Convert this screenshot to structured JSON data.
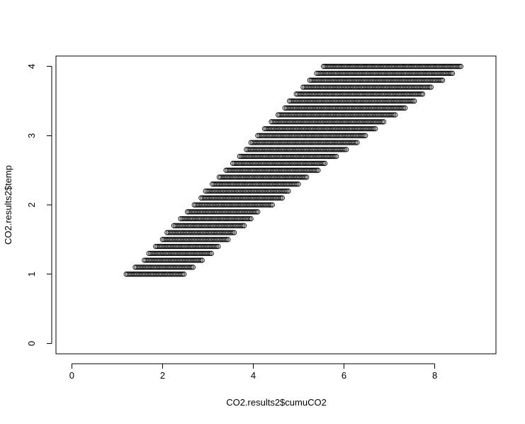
{
  "chart_data": {
    "type": "scatter",
    "title": "",
    "xlabel": "CO2.results2$cumuCO2",
    "ylabel": "CO2.results2$temp",
    "xlim": [
      -0.35,
      9.35
    ],
    "ylim": [
      -0.15,
      4.15
    ],
    "x_ticks": [
      "0",
      "2",
      "4",
      "6",
      "8"
    ],
    "y_ticks": [
      "0",
      "1",
      "2",
      "3",
      "4"
    ],
    "marker": "open-circle",
    "grid": false,
    "legend": "none",
    "color": "#000000",
    "rows": [
      {
        "y": 1.0,
        "x_min": 1.2,
        "x_max": 2.5
      },
      {
        "y": 1.1,
        "x_min": 1.4,
        "x_max": 2.7
      },
      {
        "y": 1.2,
        "x_min": 1.6,
        "x_max": 2.9
      },
      {
        "y": 1.3,
        "x_min": 1.7,
        "x_max": 3.1
      },
      {
        "y": 1.4,
        "x_min": 1.85,
        "x_max": 3.25
      },
      {
        "y": 1.5,
        "x_min": 2.0,
        "x_max": 3.45
      },
      {
        "y": 1.6,
        "x_min": 2.1,
        "x_max": 3.6
      },
      {
        "y": 1.7,
        "x_min": 2.25,
        "x_max": 3.8
      },
      {
        "y": 1.8,
        "x_min": 2.4,
        "x_max": 3.95
      },
      {
        "y": 1.9,
        "x_min": 2.55,
        "x_max": 4.1
      },
      {
        "y": 2.0,
        "x_min": 2.7,
        "x_max": 4.45
      },
      {
        "y": 2.1,
        "x_min": 2.85,
        "x_max": 4.65
      },
      {
        "y": 2.2,
        "x_min": 2.95,
        "x_max": 4.8
      },
      {
        "y": 2.3,
        "x_min": 3.1,
        "x_max": 5.0
      },
      {
        "y": 2.4,
        "x_min": 3.25,
        "x_max": 5.2
      },
      {
        "y": 2.5,
        "x_min": 3.4,
        "x_max": 5.45
      },
      {
        "y": 2.6,
        "x_min": 3.55,
        "x_max": 5.6
      },
      {
        "y": 2.7,
        "x_min": 3.7,
        "x_max": 5.85
      },
      {
        "y": 2.8,
        "x_min": 3.85,
        "x_max": 6.05
      },
      {
        "y": 2.9,
        "x_min": 3.95,
        "x_max": 6.3
      },
      {
        "y": 3.0,
        "x_min": 4.1,
        "x_max": 6.5
      },
      {
        "y": 3.1,
        "x_min": 4.25,
        "x_max": 6.7
      },
      {
        "y": 3.2,
        "x_min": 4.4,
        "x_max": 6.9
      },
      {
        "y": 3.3,
        "x_min": 4.55,
        "x_max": 7.15
      },
      {
        "y": 3.4,
        "x_min": 4.7,
        "x_max": 7.35
      },
      {
        "y": 3.5,
        "x_min": 4.8,
        "x_max": 7.55
      },
      {
        "y": 3.6,
        "x_min": 4.95,
        "x_max": 7.75
      },
      {
        "y": 3.7,
        "x_min": 5.1,
        "x_max": 7.95
      },
      {
        "y": 3.8,
        "x_min": 5.25,
        "x_max": 8.2
      },
      {
        "y": 3.9,
        "x_min": 5.4,
        "x_max": 8.4
      },
      {
        "y": 4.0,
        "x_min": 5.55,
        "x_max": 8.6
      }
    ]
  }
}
